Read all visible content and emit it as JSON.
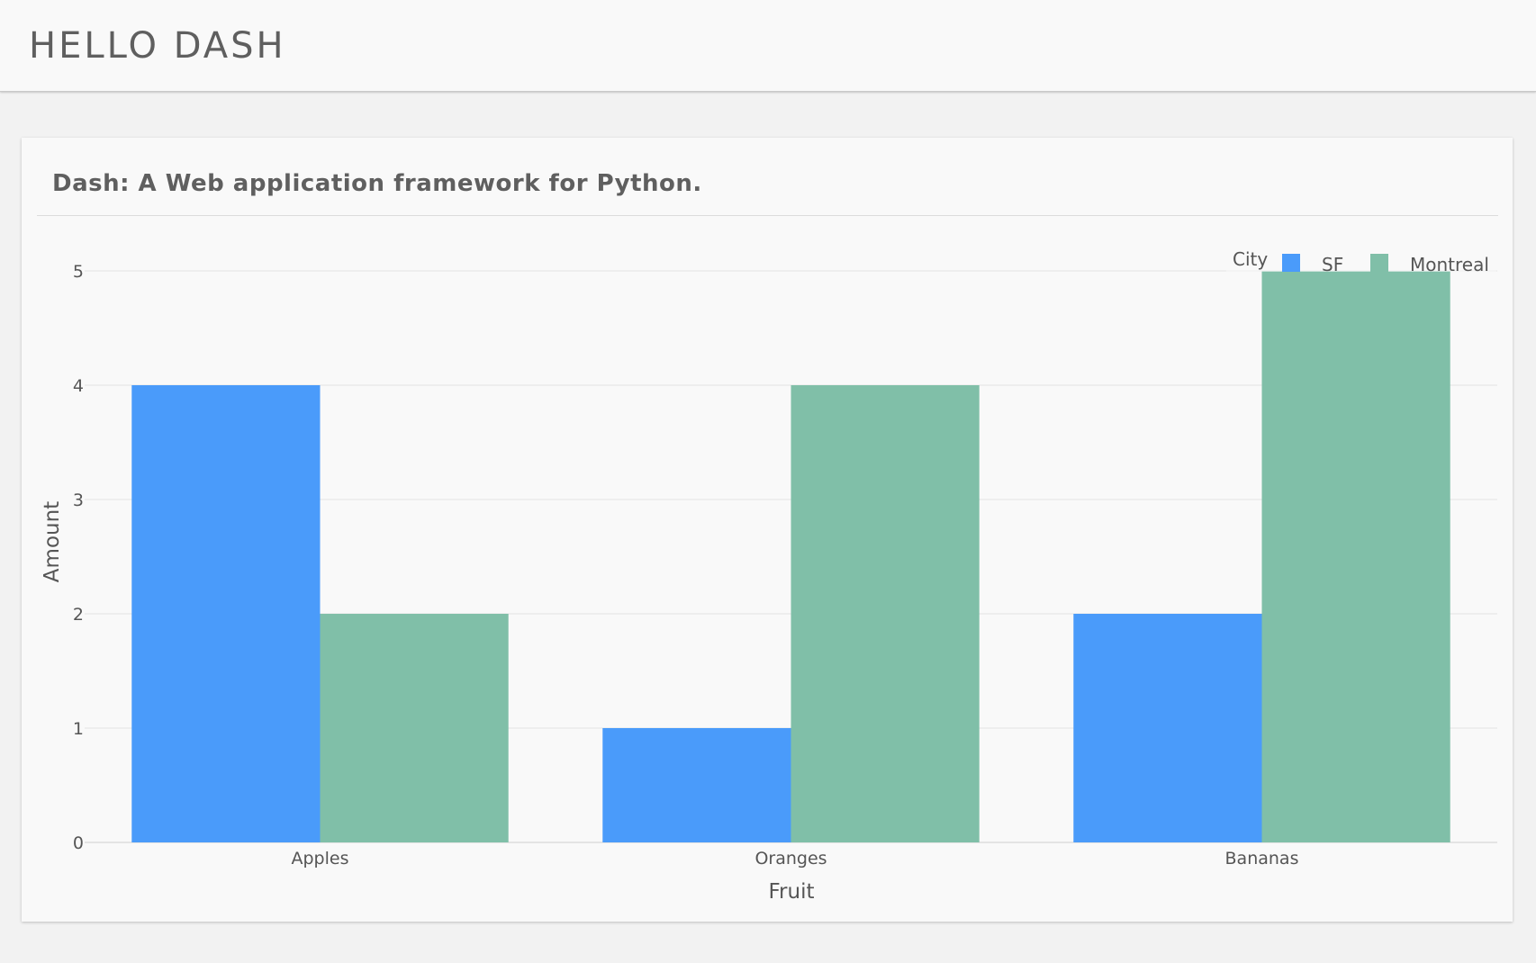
{
  "header": {
    "title": "HELLO DASH"
  },
  "card": {
    "title": "Dash: A Web application framework for Python."
  },
  "chart_data": {
    "type": "bar",
    "categories": [
      "Apples",
      "Oranges",
      "Bananas"
    ],
    "series": [
      {
        "name": "SF",
        "values": [
          4,
          1,
          2
        ],
        "color": "#4a9bfa"
      },
      {
        "name": "Montreal",
        "values": [
          2,
          4,
          5
        ],
        "color": "#80bfa8"
      }
    ],
    "xlabel": "Fruit",
    "ylabel": "Amount",
    "ylim": [
      0,
      5
    ],
    "yticks": [
      0,
      1,
      2,
      3,
      4,
      5
    ],
    "grid": true,
    "legend": {
      "title": "City",
      "placement": "top-right",
      "orientation": "horizontal"
    }
  }
}
